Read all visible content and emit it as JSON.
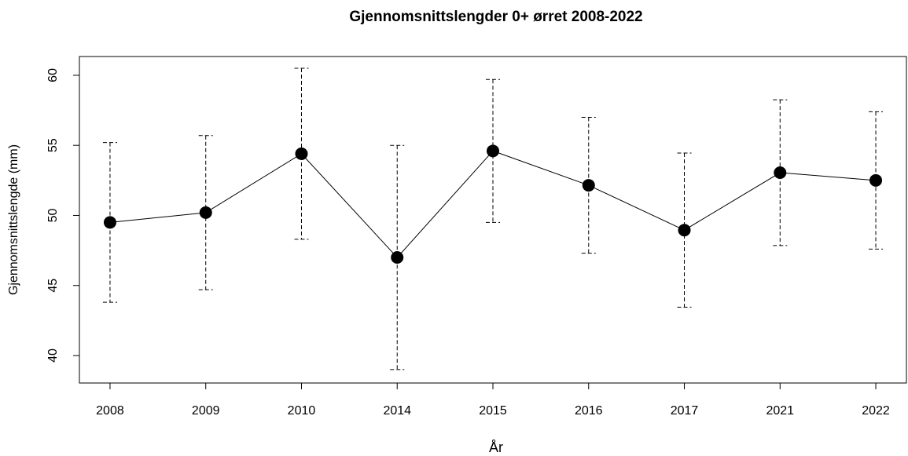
{
  "chart_data": {
    "type": "line",
    "title": "Gjennomsnittslengder 0+ ørret 2008-2022",
    "x_label": "År",
    "y_label": "Gjennomsnittslengde (mm)",
    "categories": [
      "2008",
      "2009",
      "2010",
      "2014",
      "2015",
      "2016",
      "2017",
      "2021",
      "2022"
    ],
    "values": [
      49.5,
      50.2,
      54.4,
      47.0,
      54.6,
      52.15,
      48.95,
      53.05,
      52.5
    ],
    "errors": [
      5.7,
      5.5,
      6.1,
      8.0,
      5.1,
      4.85,
      5.5,
      5.2,
      4.9
    ],
    "color": "#000000",
    "ylim": [
      38.04,
      61.34
    ],
    "yticks": [
      40,
      45,
      50,
      55,
      60
    ],
    "grid": false
  }
}
